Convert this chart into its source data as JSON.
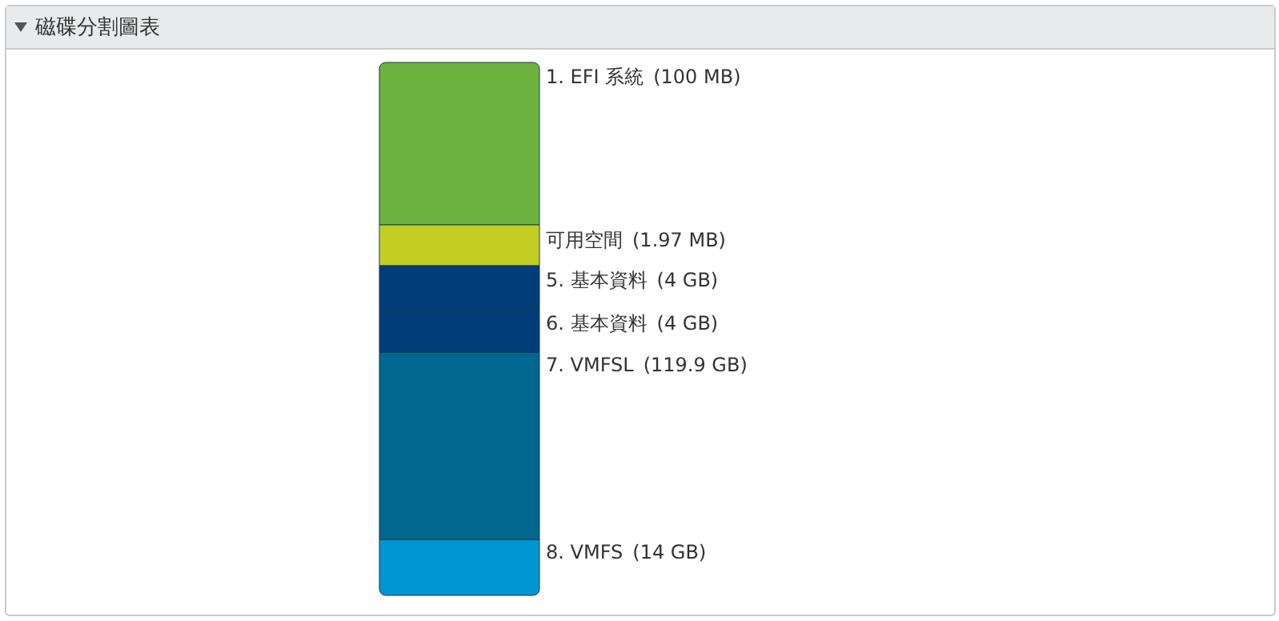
{
  "chart_data": {
    "type": "other",
    "title": "磁碟分割圖表",
    "categories": [
      "1. EFI 系統",
      "可用空間",
      "5. 基本資料",
      "6. 基本資料",
      "7. VMFSL",
      "8. VMFS"
    ],
    "values": [
      100,
      1.97,
      4,
      4,
      119.9,
      14
    ],
    "value_labels": [
      "(100 MB)",
      "(1.97 MB)",
      "(4 GB)",
      "(4 GB)",
      "(119.9 GB)",
      "(14 GB)"
    ],
    "colors": [
      "#6db33f",
      "#c2cf22",
      "#003d79",
      "#003d79",
      "#00678f",
      "#0095d3"
    ]
  }
}
